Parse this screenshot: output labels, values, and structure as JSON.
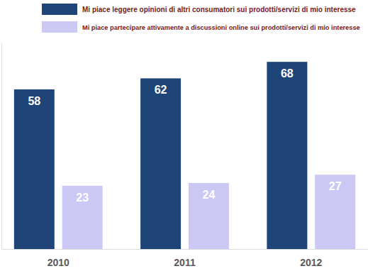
{
  "chart_data": {
    "type": "bar",
    "categories": [
      "2010",
      "2011",
      "2012"
    ],
    "series": [
      {
        "name": "Mi piace leggere opinioni di altri consumatori sui prodotti/servizi di mio interesse",
        "color": "#1f4478",
        "values": [
          58,
          62,
          68
        ]
      },
      {
        "name": "Mi piace partecipare attivamente a discussioni online sui prodotti/servizi di mio interesse",
        "color": "#cbc8f4",
        "values": [
          23,
          24,
          27
        ]
      }
    ],
    "ylim": [
      0,
      75
    ],
    "data_labels": true,
    "tick_labels": "x",
    "legend": "top-left",
    "grid": false
  }
}
